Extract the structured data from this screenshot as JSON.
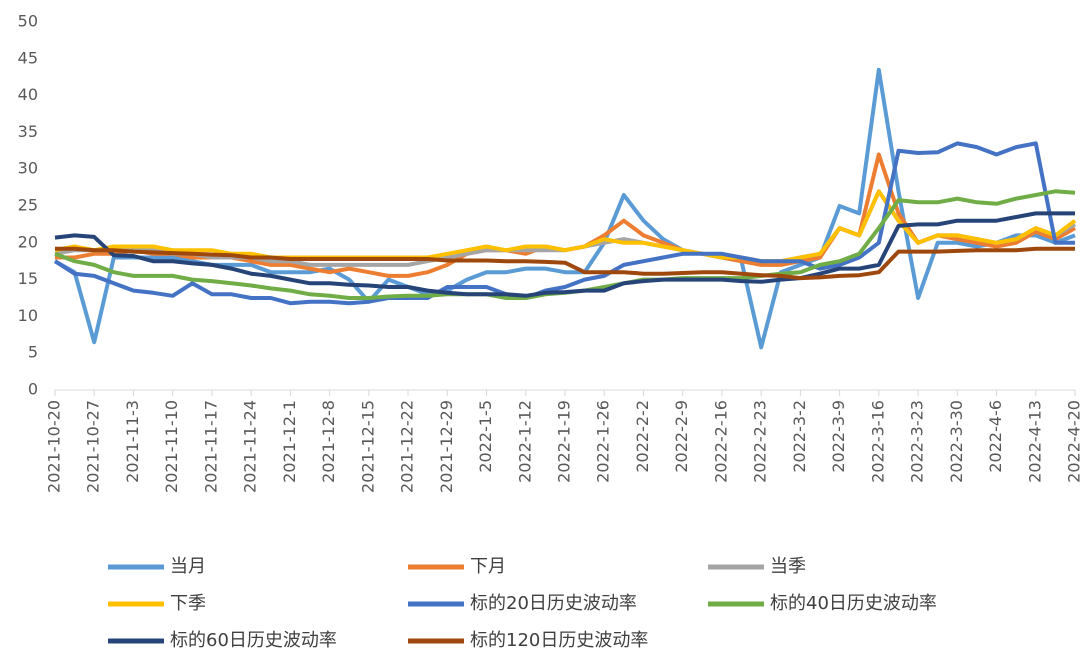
{
  "chart_data": {
    "type": "line",
    "categories": [
      "2021-10-20",
      null,
      "2021-10-27",
      null,
      "2021-11-3",
      null,
      "2021-11-10",
      null,
      "2021-11-17",
      null,
      "2021-11-24",
      null,
      "2021-12-1",
      null,
      "2021-12-8",
      null,
      "2021-12-15",
      null,
      "2021-12-22",
      null,
      "2021-12-29",
      null,
      "2022-1-5",
      null,
      "2022-1-12",
      null,
      "2022-1-19",
      null,
      "2022-1-26",
      null,
      "2022-2-2",
      null,
      "2022-2-9",
      null,
      "2022-2-16",
      null,
      "2022-2-23",
      null,
      "2022-3-2",
      null,
      "2022-3-9",
      null,
      "2022-3-16",
      null,
      "2022-3-23",
      null,
      "2022-3-30",
      null,
      "2022-4-6",
      null,
      "2022-4-13",
      null,
      "2022-4-20"
    ],
    "series": [
      {
        "name": "当月",
        "color": "#5b9bd5",
        "values": [
          17.5,
          16,
          6.5,
          18,
          18,
          18,
          18,
          17.5,
          17,
          17,
          17,
          16,
          16,
          16,
          16.5,
          15,
          12,
          15,
          14,
          13,
          13.5,
          15,
          16,
          16,
          16.5,
          16.5,
          16,
          16,
          20,
          26.5,
          23,
          20.5,
          19,
          18.5,
          18,
          17.5,
          5.8,
          16,
          17,
          18,
          25,
          24,
          43.5,
          27,
          12.5,
          20,
          20,
          19.5,
          20,
          21,
          21,
          20,
          21
        ]
      },
      {
        "name": "下月",
        "color": "#ed7d31",
        "values": [
          18,
          18,
          18.5,
          18.5,
          19,
          18.5,
          18.5,
          18,
          18,
          18,
          17.5,
          17,
          17,
          16.5,
          16,
          16.5,
          16,
          15.5,
          15.5,
          16,
          17,
          18.5,
          19,
          19,
          18.5,
          19.5,
          19,
          19.5,
          21,
          23,
          21,
          20,
          19,
          18.5,
          18,
          17.5,
          17,
          17,
          17.5,
          18,
          22,
          21,
          32,
          24,
          20,
          21,
          20.5,
          20,
          19.5,
          20,
          21.5,
          20.5,
          22
        ]
      },
      {
        "name": "当季",
        "color": "#a5a5a5",
        "values": [
          18.5,
          19,
          19,
          19,
          19,
          19,
          18.5,
          18.5,
          18,
          18,
          18,
          17.5,
          17.5,
          17,
          17,
          17,
          17,
          17,
          17,
          17.5,
          18,
          18.5,
          19,
          19,
          19,
          19,
          19,
          19.5,
          20,
          20.5,
          20,
          19.5,
          19,
          18.5,
          18,
          18,
          17.5,
          17.5,
          18,
          18.5,
          22,
          21,
          27,
          23,
          20,
          21,
          21,
          20.5,
          20,
          20.5,
          22,
          21,
          22.5
        ]
      },
      {
        "name": "下季",
        "color": "#ffc000",
        "values": [
          19,
          19.5,
          19,
          19.5,
          19.5,
          19.5,
          19,
          19,
          19,
          18.5,
          18.5,
          18,
          18,
          18,
          18,
          18,
          18,
          18,
          18,
          18,
          18.5,
          19,
          19.5,
          19,
          19.5,
          19.5,
          19,
          19.5,
          20.5,
          20,
          20,
          19.5,
          19,
          18.5,
          18,
          18,
          17.5,
          17.5,
          18,
          18.5,
          22,
          21,
          27,
          23,
          20,
          21,
          21,
          20.5,
          20,
          20.5,
          22,
          21,
          23
        ]
      },
      {
        "name": "标的20日历史波动率",
        "color": "#4472c4",
        "values": [
          17.5,
          15.8,
          15.5,
          14.5,
          13.5,
          13.2,
          12.8,
          14.5,
          13,
          13,
          12.5,
          12.5,
          11.8,
          12,
          12,
          11.8,
          12,
          12.5,
          12.5,
          12.5,
          14,
          14,
          14,
          13,
          12.5,
          13.5,
          14,
          15,
          15.5,
          17,
          17.5,
          18,
          18.5,
          18.5,
          18.5,
          18,
          17.5,
          17.5,
          17.5,
          16.5,
          17,
          18,
          20,
          32.5,
          32.2,
          32.3,
          33.5,
          33,
          32,
          33,
          33.5,
          20,
          20
        ]
      },
      {
        "name": "标的40日历史波动率",
        "color": "#70ad47",
        "values": [
          18.5,
          17.5,
          17,
          16,
          15.5,
          15.5,
          15.5,
          15,
          14.8,
          14.5,
          14.2,
          13.8,
          13.5,
          13,
          12.8,
          12.5,
          12.5,
          12.7,
          12.8,
          12.8,
          13,
          13,
          13,
          12.5,
          12.5,
          13,
          13.2,
          13.5,
          14,
          14.5,
          15,
          15,
          15.2,
          15.2,
          15.2,
          15.2,
          15.5,
          15.8,
          16,
          17,
          17.5,
          18.5,
          22,
          25.8,
          25.5,
          25.5,
          26,
          25.5,
          25.3,
          26,
          26.5,
          27,
          26.8
        ]
      },
      {
        "name": "标的60日历史波动率",
        "color": "#264478",
        "values": [
          20.7,
          21,
          20.8,
          18.3,
          18.2,
          17.5,
          17.5,
          17.2,
          17,
          16.5,
          15.8,
          15.5,
          15,
          14.5,
          14.5,
          14.3,
          14.2,
          14,
          14,
          13.5,
          13.2,
          13,
          13,
          13,
          12.8,
          13.2,
          13.3,
          13.5,
          13.5,
          14.5,
          14.8,
          15,
          15,
          15,
          15,
          14.8,
          14.7,
          15,
          15.2,
          15.8,
          16.5,
          16.5,
          17,
          22.3,
          22.5,
          22.5,
          23,
          23,
          23,
          23.5,
          24,
          24,
          24
        ]
      },
      {
        "name": "标的120日历史波动率",
        "color": "#9e480e",
        "values": [
          19.2,
          19.2,
          19,
          19,
          18.8,
          18.7,
          18.6,
          18.5,
          18.4,
          18.3,
          18,
          18,
          17.8,
          17.8,
          17.8,
          17.8,
          17.8,
          17.8,
          17.8,
          17.8,
          17.6,
          17.6,
          17.6,
          17.5,
          17.5,
          17.4,
          17.3,
          16,
          16,
          16,
          15.8,
          15.8,
          15.9,
          16,
          16,
          15.8,
          15.6,
          15.5,
          15.2,
          15.3,
          15.5,
          15.6,
          16,
          18.8,
          18.8,
          18.8,
          18.9,
          19,
          19,
          19,
          19.2,
          19.2,
          19.2
        ]
      }
    ],
    "ylim": [
      0,
      50
    ],
    "yticks": [
      0,
      5,
      10,
      15,
      20,
      25,
      30,
      35,
      40,
      45,
      50
    ],
    "grid": false
  }
}
